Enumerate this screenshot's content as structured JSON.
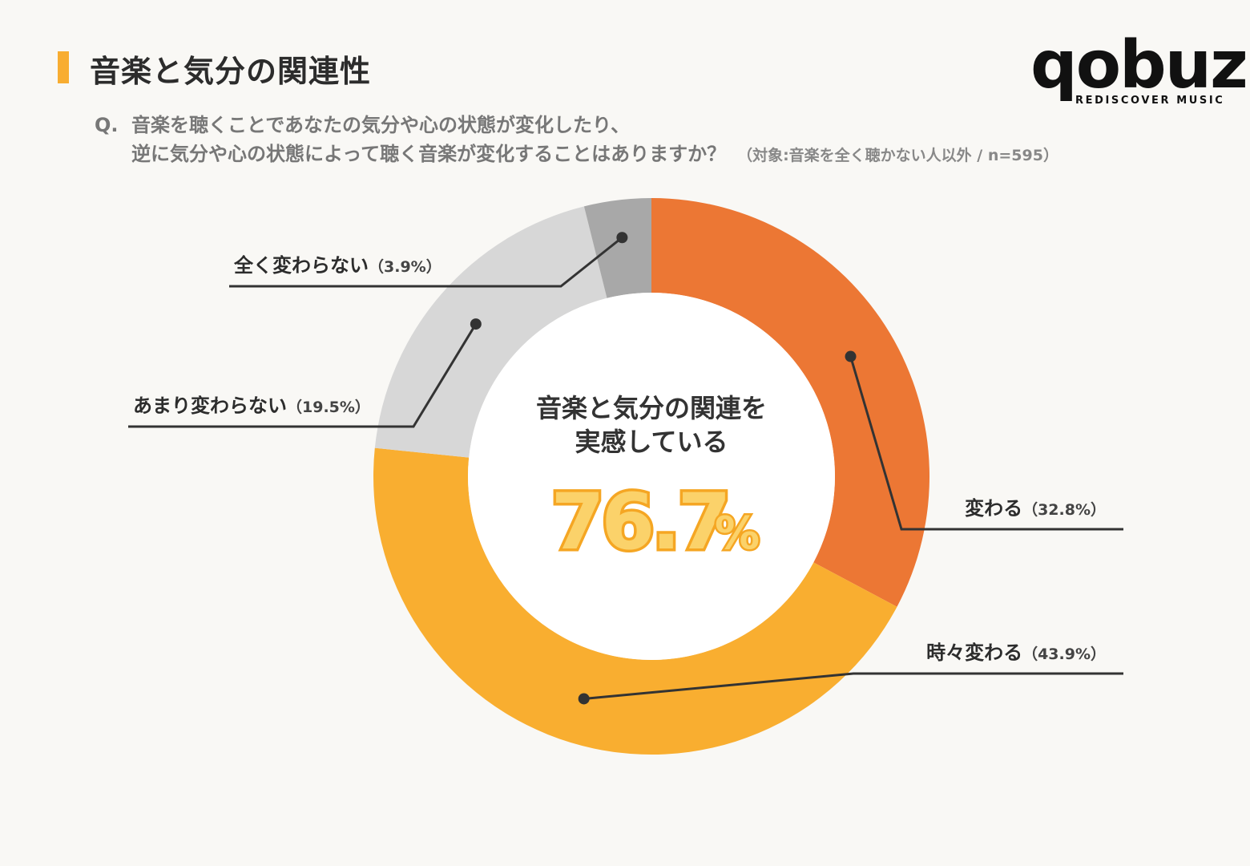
{
  "header": {
    "title": "音楽と気分の関連性",
    "question_prefix": "Q.",
    "question_line1": "音楽を聴くことであなたの気分や心の状態が変化したり、",
    "question_line2": "逆に気分や心の状態によって聴く音楽が変化することはありますか？",
    "question_note": "（対象:音楽を全く聴かない人以外 / n=595）"
  },
  "logo": {
    "word": "qobuz",
    "tagline": "REDISCOVER MUSIC"
  },
  "center": {
    "line1": "音楽と気分の関連を",
    "line2": "実感している",
    "value": "76.7",
    "unit": "%"
  },
  "chart_data": {
    "type": "pie",
    "donut": true,
    "categories": [
      "変わる",
      "時々変わる",
      "あまり変わらない",
      "全く変わらない"
    ],
    "values": [
      32.8,
      43.9,
      19.5,
      3.9
    ],
    "value_labels": [
      "（32.8%）",
      "（43.9%）",
      "（19.5%）",
      "（3.9%）"
    ],
    "colors": [
      "#ec7734",
      "#f9ae30",
      "#d7d7d7",
      "#a8a8a8"
    ],
    "start": "top",
    "direction": "clockwise"
  }
}
